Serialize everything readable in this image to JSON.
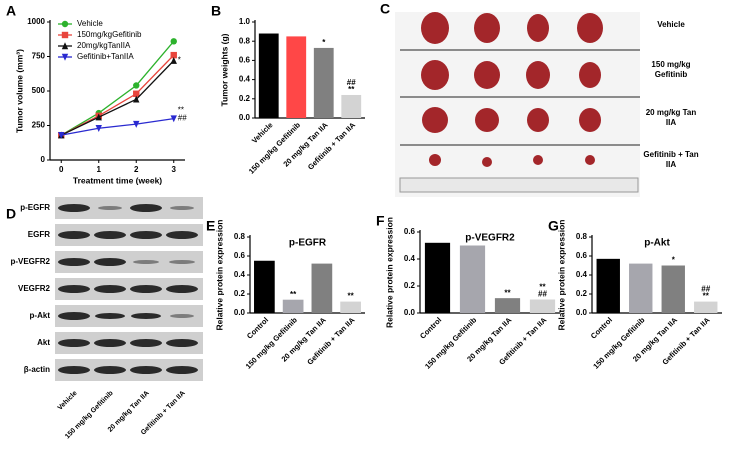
{
  "chart_data": [
    {
      "type": "line",
      "panel": "A",
      "ylabel": "Tumor volume (mm³)",
      "xlabel": "Treatment time (week)",
      "x": [
        0,
        1,
        2,
        3
      ],
      "xlim": [
        -0.3,
        3.3
      ],
      "xticks": [
        0,
        1,
        2,
        3
      ],
      "ylim": [
        0,
        1000
      ],
      "yticks": [
        0,
        250,
        500,
        750,
        1000
      ],
      "series": [
        {
          "name": "Vehicle",
          "color": "#2db22d",
          "marker": "circle",
          "values": [
            180,
            340,
            540,
            860
          ]
        },
        {
          "name": "150mg/kgGefitinib",
          "color": "#e8453c",
          "marker": "square",
          "values": [
            180,
            320,
            480,
            760
          ]
        },
        {
          "name": "20mg/kgTanIIA",
          "color": "#111111",
          "marker": "triangle-up",
          "values": [
            180,
            310,
            440,
            720
          ]
        },
        {
          "name": "Gefitinib+TanIIA",
          "color": "#2a2ad0",
          "marker": "triangle-down",
          "values": [
            180,
            230,
            260,
            300
          ]
        }
      ],
      "annotations": [
        {
          "series": "20mg/kgTanIIA",
          "text": "*"
        },
        {
          "series": "Gefitinib+TanIIA",
          "text": "##"
        },
        {
          "series": "Gefitinib+TanIIA",
          "text": "**"
        }
      ]
    },
    {
      "type": "bar",
      "panel": "B",
      "ylabel": "Tumor weights (g)",
      "categories": [
        "Vehicle",
        "150 mg/kg Gefitinib",
        "20 mg/kg Tan IIA",
        "Gefitinib + Tan IIA"
      ],
      "values": [
        0.88,
        0.85,
        0.73,
        0.24
      ],
      "colors": [
        "#000000",
        "#ff4747",
        "#808080",
        "#d3d3d3"
      ],
      "ylim": [
        0,
        1.0
      ],
      "yticks": [
        {
          "value": 0,
          "label": "0.0"
        },
        0.2,
        0.4,
        0.6,
        0.8,
        {
          "value": 1.0,
          "label": "1.0"
        }
      ],
      "annotations": [
        {
          "category": "20 mg/kg Tan IIA",
          "text": "*"
        },
        {
          "category": "Gefitinib + Tan IIA",
          "text": "**"
        },
        {
          "category": "Gefitinib + Tan IIA",
          "text": "##"
        }
      ]
    },
    {
      "type": "bar",
      "panel": "E",
      "title": "p-EGFR",
      "ylabel": "Relative protein expression",
      "categories": [
        "Control",
        "150 mg/kg Gefitinib",
        "20 mg/kg Tan IIA",
        "Gefitinib + Tan IIA"
      ],
      "values": [
        0.55,
        0.14,
        0.52,
        0.12
      ],
      "colors": [
        "#000000",
        "#a6a6ad",
        "#808080",
        "#d3d3d3"
      ],
      "ylim": [
        0,
        0.8
      ],
      "yticks": [
        {
          "value": 0,
          "label": "0.0"
        },
        0.2,
        0.4,
        0.6,
        0.8
      ],
      "annotations": [
        {
          "category": "150 mg/kg Gefitinib",
          "text": "**"
        },
        {
          "category": "Gefitinib + Tan IIA",
          "text": "**"
        }
      ]
    },
    {
      "type": "bar",
      "panel": "F",
      "title": "p-VEGFR2",
      "ylabel": "Relative protein expression",
      "categories": [
        "Control",
        "150 mg/kg Gefitinib",
        "20 mg/kg Tan IIA",
        "Gefitinib + Tan IIA"
      ],
      "values": [
        0.52,
        0.5,
        0.11,
        0.1
      ],
      "colors": [
        "#000000",
        "#a6a6ad",
        "#808080",
        "#d3d3d3"
      ],
      "ylim": [
        0,
        0.6
      ],
      "yticks": [
        {
          "value": 0,
          "label": "0.0"
        },
        0.2,
        0.4,
        0.6
      ],
      "annotations": [
        {
          "category": "20 mg/kg Tan IIA",
          "text": "**"
        },
        {
          "category": "Gefitinib + Tan IIA",
          "text": "##"
        },
        {
          "category": "Gefitinib + Tan IIA",
          "text": "**"
        }
      ]
    },
    {
      "type": "bar",
      "panel": "G",
      "title": "p-Akt",
      "ylabel": "Relative protein expression",
      "categories": [
        "Control",
        "150 mg/kg Gefitinib",
        "20 mg/kg Tan IIA",
        "Gefitinib + Tan IIA"
      ],
      "values": [
        0.57,
        0.52,
        0.5,
        0.12
      ],
      "colors": [
        "#000000",
        "#a6a6ad",
        "#808080",
        "#d3d3d3"
      ],
      "ylim": [
        0,
        0.8
      ],
      "yticks": [
        {
          "value": 0,
          "label": "0.0"
        },
        0.2,
        0.4,
        0.6,
        0.8
      ],
      "annotations": [
        {
          "category": "20 mg/kg Tan IIA",
          "text": "*"
        },
        {
          "category": "Gefitinib + Tan IIA",
          "text": "**"
        },
        {
          "category": "Gefitinib + Tan IIA",
          "text": "##"
        }
      ]
    }
  ],
  "tumor_photo": {
    "panel": "C",
    "groups": [
      "Vehicle",
      "150 mg/kg Gefitinib",
      "20 mg/kg Tan IIA",
      "Gefitinib + Tan IIA"
    ]
  },
  "western_blot": {
    "panel": "D",
    "proteins": [
      "p-EGFR",
      "EGFR",
      "p-VEGFR2",
      "VEGFR2",
      "p-Akt",
      "Akt",
      "β-actin"
    ],
    "lanes": [
      "Vehicle",
      "150 mg/kg Gefitinib",
      "20 mg/kg Tan IIA",
      "Gefitinib + Tan IIA"
    ]
  }
}
